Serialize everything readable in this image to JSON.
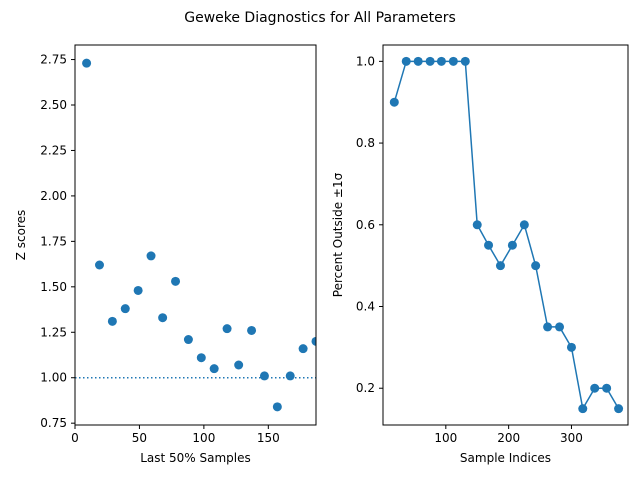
{
  "figure": {
    "suptitle": "Geweke Diagnostics for All Parameters"
  },
  "chart_data": [
    {
      "type": "scatter",
      "title": "",
      "xlabel": "Last 50% Samples",
      "ylabel": "Z scores",
      "xlim": [
        0,
        187
      ],
      "ylim": [
        0.74,
        2.83
      ],
      "xticks": [
        0,
        50,
        100,
        150
      ],
      "yticks": [
        0.75,
        1.0,
        1.25,
        1.5,
        1.75,
        2.0,
        2.25,
        2.5,
        2.75
      ],
      "grid": false,
      "color": "#1f77b4",
      "reference_line": {
        "y": 1.0,
        "style": "dotted",
        "color": "#1f77b4"
      },
      "series": [
        {
          "x": [
            9,
            19,
            29,
            39,
            49,
            59,
            68,
            78,
            88,
            98,
            108,
            118,
            127,
            137,
            147,
            157,
            167,
            177,
            187
          ],
          "y": [
            2.73,
            1.62,
            1.31,
            1.38,
            1.48,
            1.67,
            1.33,
            1.53,
            1.21,
            1.11,
            1.05,
            1.27,
            1.07,
            1.26,
            1.01,
            0.84,
            1.01,
            1.16,
            1.2
          ]
        }
      ]
    },
    {
      "type": "line",
      "title": "",
      "xlabel": "Sample Indices",
      "ylabel": "Percent Outside ±1σ",
      "xlim": [
        0,
        390
      ],
      "ylim": [
        0.11,
        1.04
      ],
      "xticks": [
        100,
        200,
        300
      ],
      "yticks": [
        0.2,
        0.4,
        0.6,
        0.8,
        1.0
      ],
      "grid": false,
      "color": "#1f77b4",
      "markers": true,
      "series": [
        {
          "x": [
            18,
            37,
            56,
            75,
            93,
            112,
            131,
            150,
            168,
            187,
            206,
            225,
            243,
            262,
            281,
            300,
            318,
            337,
            356,
            375
          ],
          "y": [
            0.9,
            1.0,
            1.0,
            1.0,
            1.0,
            1.0,
            1.0,
            0.6,
            0.55,
            0.5,
            0.55,
            0.6,
            0.5,
            0.35,
            0.35,
            0.3,
            0.15,
            0.2,
            0.2,
            0.15
          ]
        }
      ]
    }
  ]
}
